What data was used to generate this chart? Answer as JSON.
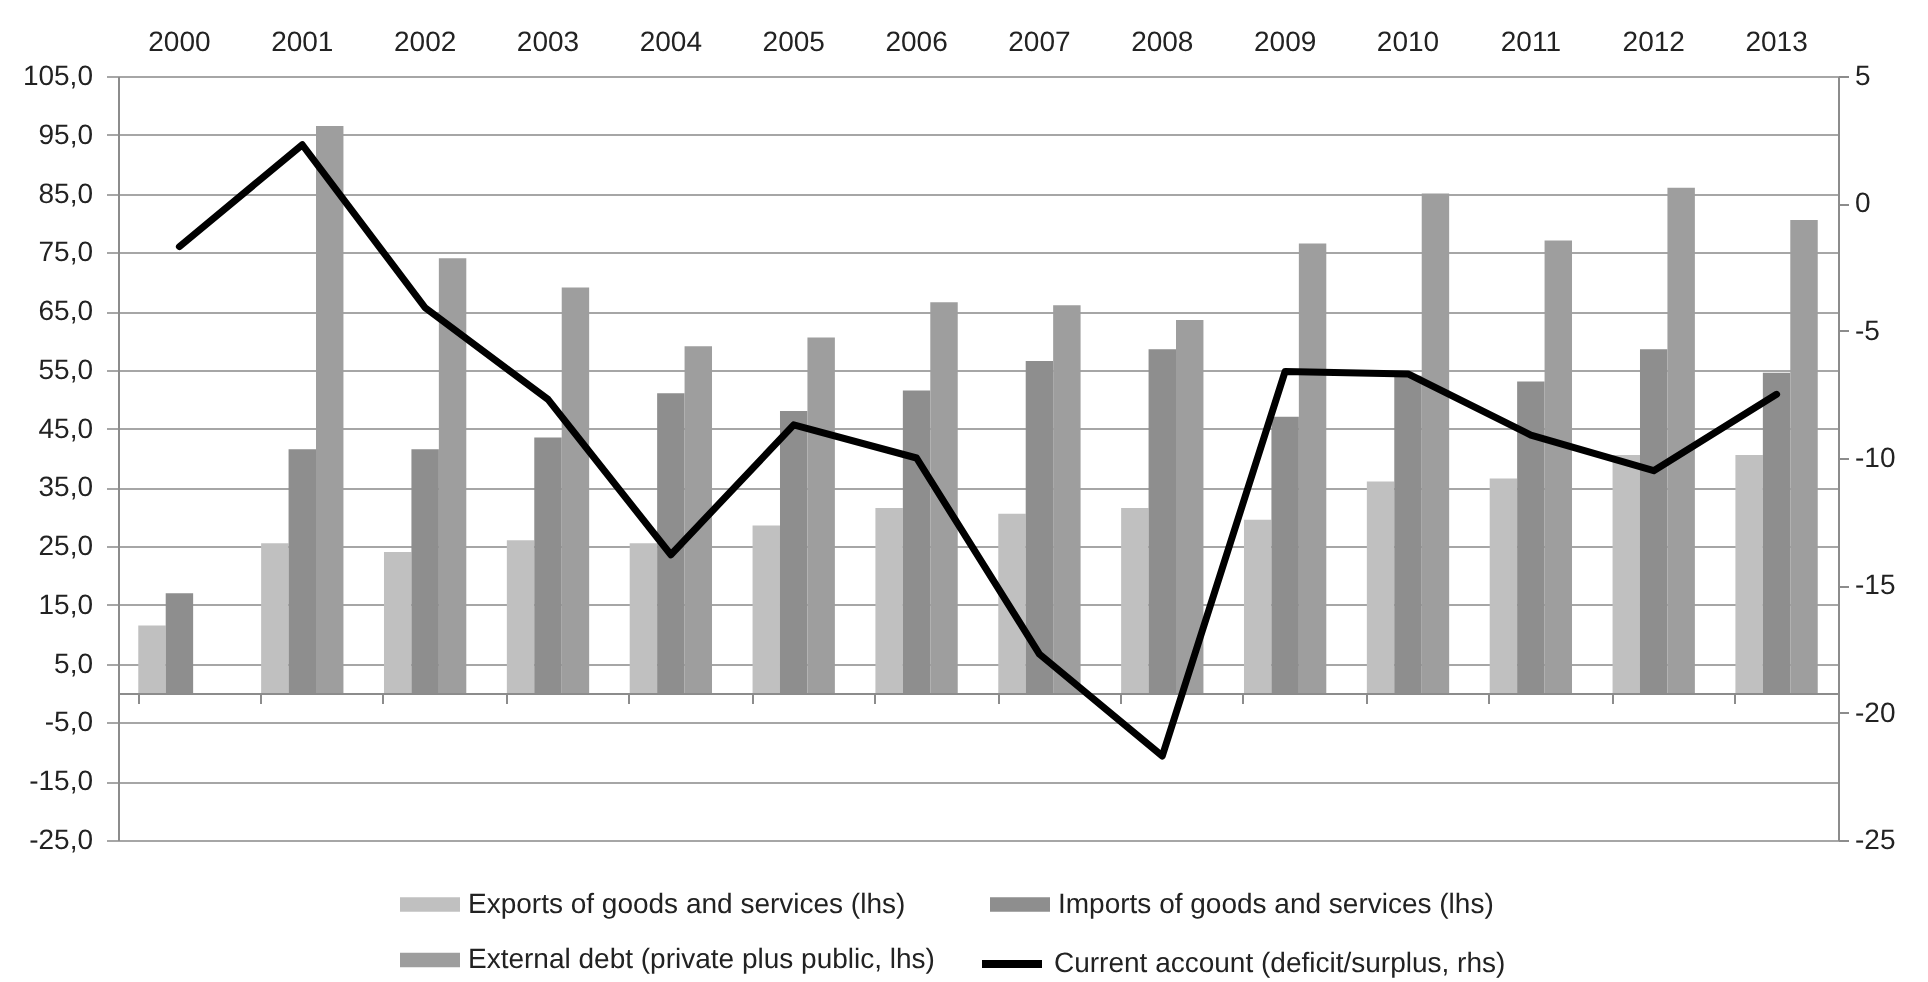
{
  "chart_data": {
    "type": "bar",
    "categories": [
      "2000",
      "2001",
      "2002",
      "2003",
      "2004",
      "2005",
      "2006",
      "2007",
      "2008",
      "2009",
      "2010",
      "2011",
      "2012",
      "2013"
    ],
    "series": [
      {
        "name": "Exports of goods and services (lhs)",
        "color": "#c0c0c0",
        "values": [
          11.5,
          25.5,
          24,
          26,
          25.5,
          28.5,
          31.5,
          30.5,
          31.5,
          29.5,
          36,
          36.5,
          40.5,
          40.5
        ]
      },
      {
        "name": "Imports of goods and services (lhs)",
        "color": "#8e8e8e",
        "values": [
          17,
          41.5,
          41.5,
          43.5,
          51,
          48,
          51.5,
          56.5,
          58.5,
          47,
          54,
          53,
          58.5,
          54.5
        ]
      },
      {
        "name": "External debt (private plus public, lhs)",
        "color": "#9e9e9e",
        "values": [
          null,
          96.5,
          74,
          69,
          59,
          60.5,
          66.5,
          66,
          63.5,
          76.5,
          85,
          77,
          86,
          80.5
        ]
      },
      {
        "name": "Current account (deficit/surplus, rhs)",
        "type": "line",
        "axis": "y2",
        "color": "#000000",
        "values": [
          -1.7,
          2.3,
          -4.1,
          -7.7,
          -13.8,
          -8.7,
          -10.0,
          -17.7,
          -21.7,
          -6.6,
          -6.7,
          -9.1,
          -10.5,
          -7.5
        ]
      }
    ],
    "ylim": [
      -25,
      105
    ],
    "yticks": [
      {
        "value": -25,
        "label": "-25,0"
      },
      {
        "value": -15,
        "label": "-15,0"
      },
      {
        "value": -5,
        "label": "-5,0"
      },
      {
        "value": 5,
        "label": "5,0"
      },
      {
        "value": 15,
        "label": "15,0"
      },
      {
        "value": 25,
        "label": "25,0"
      },
      {
        "value": 35,
        "label": "35,0"
      },
      {
        "value": 45,
        "label": "45,0"
      },
      {
        "value": 55,
        "label": "55,0"
      },
      {
        "value": 65,
        "label": "65,0"
      },
      {
        "value": 75,
        "label": "75,0"
      },
      {
        "value": 85,
        "label": "85,0"
      },
      {
        "value": 95,
        "label": "95,0"
      },
      {
        "value": 105,
        "label": "105,0"
      }
    ],
    "y2lim": [
      -25,
      5
    ],
    "y2ticks": [
      -25,
      -20,
      -15,
      -10,
      -5,
      0,
      5
    ],
    "grid": "y",
    "legend": "bottom"
  }
}
